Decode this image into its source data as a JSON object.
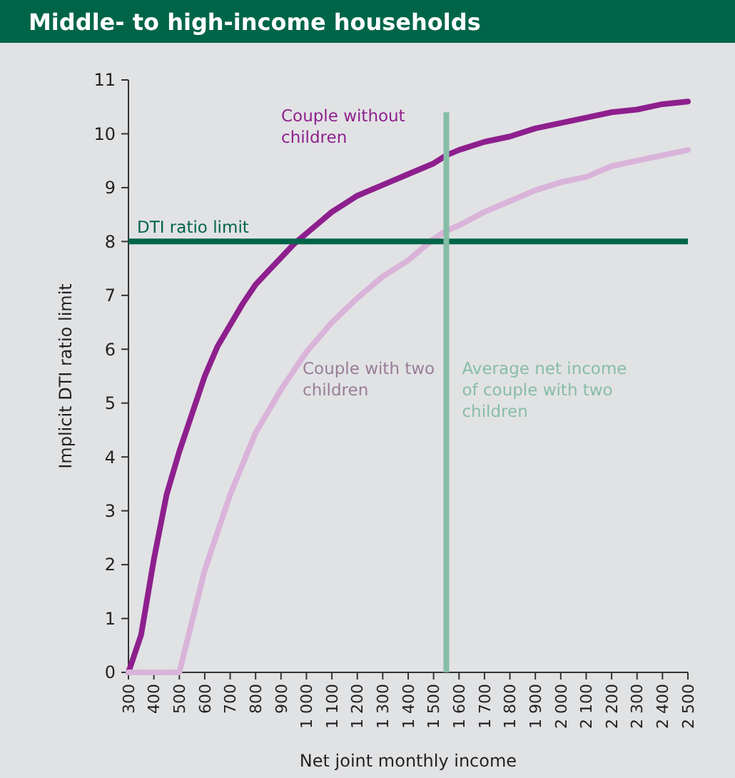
{
  "chart_data": {
    "type": "line",
    "title": "Middle- to high-income households",
    "xlabel": "Net joint monthly income",
    "ylabel": "Implicit DTI ratio limit",
    "x": [
      300,
      350,
      400,
      450,
      500,
      550,
      600,
      650,
      700,
      750,
      800,
      850,
      900,
      950,
      1000,
      1050,
      1100,
      1150,
      1200,
      1300,
      1400,
      1500,
      1550,
      1600,
      1700,
      1800,
      1900,
      2000,
      2100,
      2200,
      2300,
      2400,
      2500
    ],
    "series": [
      {
        "name": "Couple without children",
        "color": "#8e1f8e",
        "values": [
          0,
          0.7,
          2.1,
          3.3,
          4.1,
          4.8,
          5.5,
          6.05,
          6.45,
          6.85,
          7.2,
          7.45,
          7.7,
          7.95,
          8.15,
          8.35,
          8.55,
          8.7,
          8.85,
          9.05,
          9.25,
          9.45,
          9.6,
          9.7,
          9.85,
          9.95,
          10.1,
          10.2,
          10.3,
          10.4,
          10.45,
          10.55,
          10.6
        ]
      },
      {
        "name": "Couple with two children",
        "color": "#d9b3d9",
        "x": [
          300,
          400,
          500,
          600,
          700,
          800,
          900,
          1000,
          1100,
          1200,
          1300,
          1400,
          1500,
          1550,
          1600,
          1700,
          1800,
          1900,
          2000,
          2100,
          2200,
          2300,
          2400,
          2500
        ],
        "values": [
          0,
          0,
          0,
          1.9,
          3.3,
          4.45,
          5.25,
          5.95,
          6.5,
          6.95,
          7.35,
          7.65,
          8.05,
          8.2,
          8.3,
          8.55,
          8.75,
          8.95,
          9.1,
          9.2,
          9.4,
          9.5,
          9.6,
          9.7
        ]
      }
    ],
    "xlim": [
      300,
      2500
    ],
    "xticks": [
      300,
      400,
      500,
      600,
      700,
      800,
      900,
      {
        "value": 1000,
        "label": "1 000"
      },
      {
        "value": 1100,
        "label": "1 100"
      },
      {
        "value": 1200,
        "label": "1 200"
      },
      {
        "value": 1300,
        "label": "1 300"
      },
      {
        "value": 1400,
        "label": "1 400"
      },
      {
        "value": 1500,
        "label": "1 500"
      },
      {
        "value": 1600,
        "label": "1 600"
      },
      {
        "value": 1700,
        "label": "1 700"
      },
      {
        "value": 1800,
        "label": "1 800"
      },
      {
        "value": 1900,
        "label": "1 900"
      },
      {
        "value": 2000,
        "label": "2 000"
      },
      {
        "value": 2100,
        "label": "2 100"
      },
      {
        "value": 2200,
        "label": "2 200"
      },
      {
        "value": 2300,
        "label": "2 300"
      },
      {
        "value": 2400,
        "label": "2 400"
      },
      {
        "value": 2500,
        "label": "2 500"
      }
    ],
    "ylim": [
      0,
      11
    ],
    "yticks": [
      0,
      1,
      2,
      3,
      4,
      5,
      6,
      7,
      8,
      9,
      10,
      11
    ],
    "ref_lines": [
      {
        "axis": "y",
        "value": 8,
        "label": "DTI ratio limit",
        "color": "#006548"
      },
      {
        "axis": "x",
        "value": 1550,
        "label": "Average net income of couple with two children",
        "color": "#86bda6"
      }
    ],
    "grid": false,
    "line_style": "solid"
  }
}
